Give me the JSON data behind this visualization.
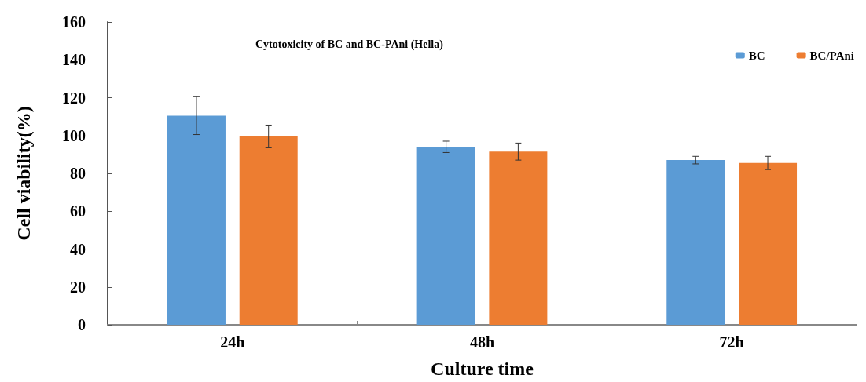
{
  "chart_data": {
    "type": "bar",
    "title": "Cytotoxicity of BC and BC-PAni (Hella)",
    "xlabel": "Culture time",
    "ylabel": "Cell viability(%)",
    "categories": [
      "24h",
      "48h",
      "72h"
    ],
    "series": [
      {
        "name": "BC",
        "color": "#5b9bd5",
        "values": [
          110.5,
          94,
          87
        ],
        "errors": [
          10,
          3,
          2
        ]
      },
      {
        "name": "BC/PAni",
        "color": "#ed7d31",
        "values": [
          99.5,
          91.5,
          85.5
        ],
        "errors": [
          6,
          4.5,
          3.5
        ]
      }
    ],
    "ylim": [
      0,
      160
    ],
    "yticks": [
      0,
      20,
      40,
      60,
      80,
      100,
      120,
      140,
      160
    ],
    "grid": false,
    "legend": "top right"
  }
}
